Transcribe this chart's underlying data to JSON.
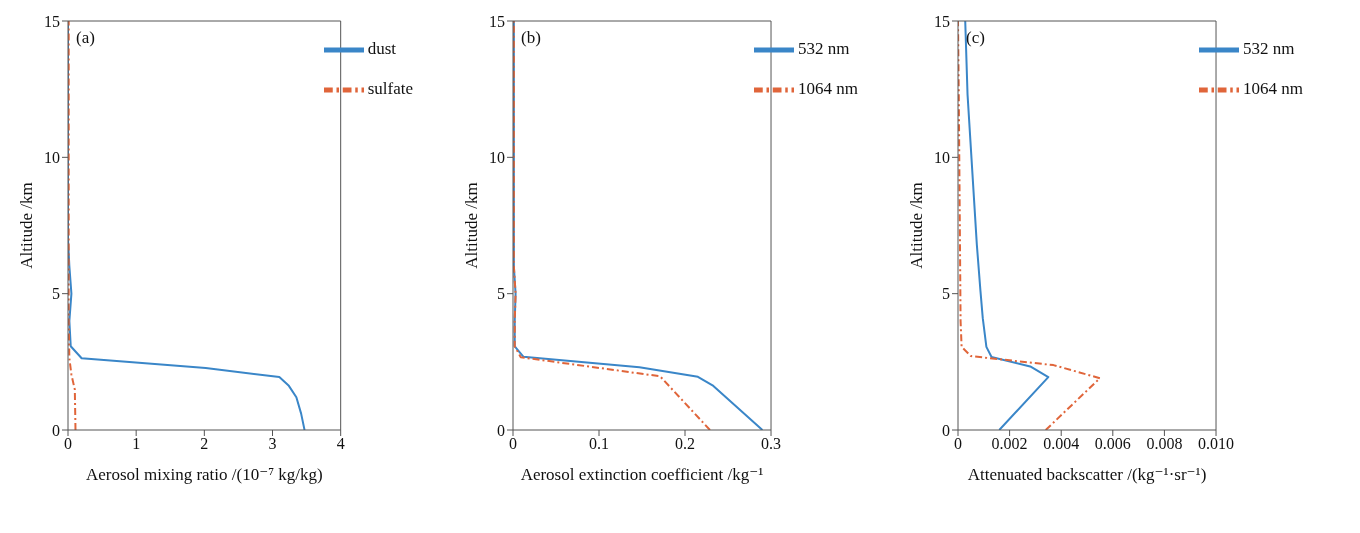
{
  "chart_data": [
    {
      "type": "line",
      "annotations": [
        "(a)"
      ],
      "xlabel": "Aerosol mixing ratio /(10⁻⁷ kg/kg)",
      "ylabel": "Altitude /km",
      "xlim": [
        0,
        4
      ],
      "xticks": [
        0,
        1,
        2,
        3,
        4
      ],
      "ylim": [
        0,
        15
      ],
      "yticks": [
        0,
        5,
        10,
        15
      ],
      "grid": false,
      "legend": "top right",
      "series": [
        {
          "name": "dust",
          "color": "#3a86c8",
          "line_style": "solid",
          "x": [
            3.47,
            3.42,
            3.35,
            3.24,
            3.1,
            2.02,
            0.2,
            0.04,
            0.02,
            0.05,
            0.02,
            0.0,
            0.0
          ],
          "values": [
            0,
            0.6,
            1.2,
            1.62,
            1.94,
            2.27,
            2.63,
            3.07,
            4.0,
            5.0,
            6.0,
            7.0,
            15
          ]
        },
        {
          "name": "sulfate",
          "color": "#e0653a",
          "line_style": "dashed",
          "x": [
            0.11,
            0.1,
            0.05,
            0.02,
            0.01,
            0.01
          ],
          "values": [
            0,
            1.48,
            2.03,
            2.63,
            4.0,
            15
          ]
        }
      ]
    },
    {
      "type": "line",
      "annotations": [
        "(b)"
      ],
      "xlabel": "Aerosol extinction coefficient /kg⁻¹",
      "ylabel": "Altitude /km",
      "xlim": [
        0,
        0.3
      ],
      "xticks": [
        0,
        0.1,
        0.2,
        0.3
      ],
      "ylim": [
        0,
        15
      ],
      "yticks": [
        0,
        5,
        10,
        15
      ],
      "grid": false,
      "legend": "top right",
      "series": [
        {
          "name": "532 nm",
          "color": "#3a86c8",
          "line_style": "solid",
          "x": [
            0.29,
            0.232,
            0.215,
            0.147,
            0.012,
            0.002,
            0.002,
            0.003,
            0.001,
            0.001
          ],
          "values": [
            0,
            1.64,
            1.95,
            2.3,
            2.69,
            3.07,
            4.0,
            5.0,
            6.0,
            15
          ]
        },
        {
          "name": "1064 nm",
          "color": "#e0653a",
          "line_style": "dashed",
          "x": [
            0.229,
            0.171,
            0.009,
            0.002,
            0.002,
            0.003,
            0.001,
            0.001
          ],
          "values": [
            0,
            1.97,
            2.67,
            3.07,
            4.0,
            5.0,
            6.0,
            15
          ]
        }
      ]
    },
    {
      "type": "line",
      "annotations": [
        "(c)"
      ],
      "xlabel": "Attenuated backscatter /(kg⁻¹·sr⁻¹)",
      "ylabel": "Altitude /km",
      "xlim": [
        0,
        0.01
      ],
      "xticks": [
        0,
        0.002,
        0.004,
        0.006,
        0.008,
        {
          "value": 0.01,
          "label": "0.010"
        }
      ],
      "ylim": [
        0,
        15
      ],
      "yticks": [
        0,
        5,
        10,
        15
      ],
      "grid": false,
      "legend": "top right",
      "series": [
        {
          "name": "532 nm",
          "color": "#3a86c8",
          "line_style": "solid",
          "x": [
            0.0016,
            0.0035,
            0.0028,
            0.0013,
            0.0011,
            0.00096,
            0.00087,
            0.00073,
            0.00037,
            0.00028
          ],
          "values": [
            0,
            1.94,
            2.33,
            2.68,
            3.05,
            4.1,
            5.1,
            6.8,
            12.3,
            15
          ]
        },
        {
          "name": "1064 nm",
          "color": "#e0653a",
          "line_style": "dashed",
          "x": [
            0.0034,
            0.0055,
            0.0037,
            0.0005,
            0.00014,
            0.0001,
            3e-05,
            0.0
          ],
          "values": [
            0,
            1.9,
            2.38,
            2.71,
            3.05,
            4.0,
            12.3,
            15
          ]
        }
      ]
    }
  ]
}
